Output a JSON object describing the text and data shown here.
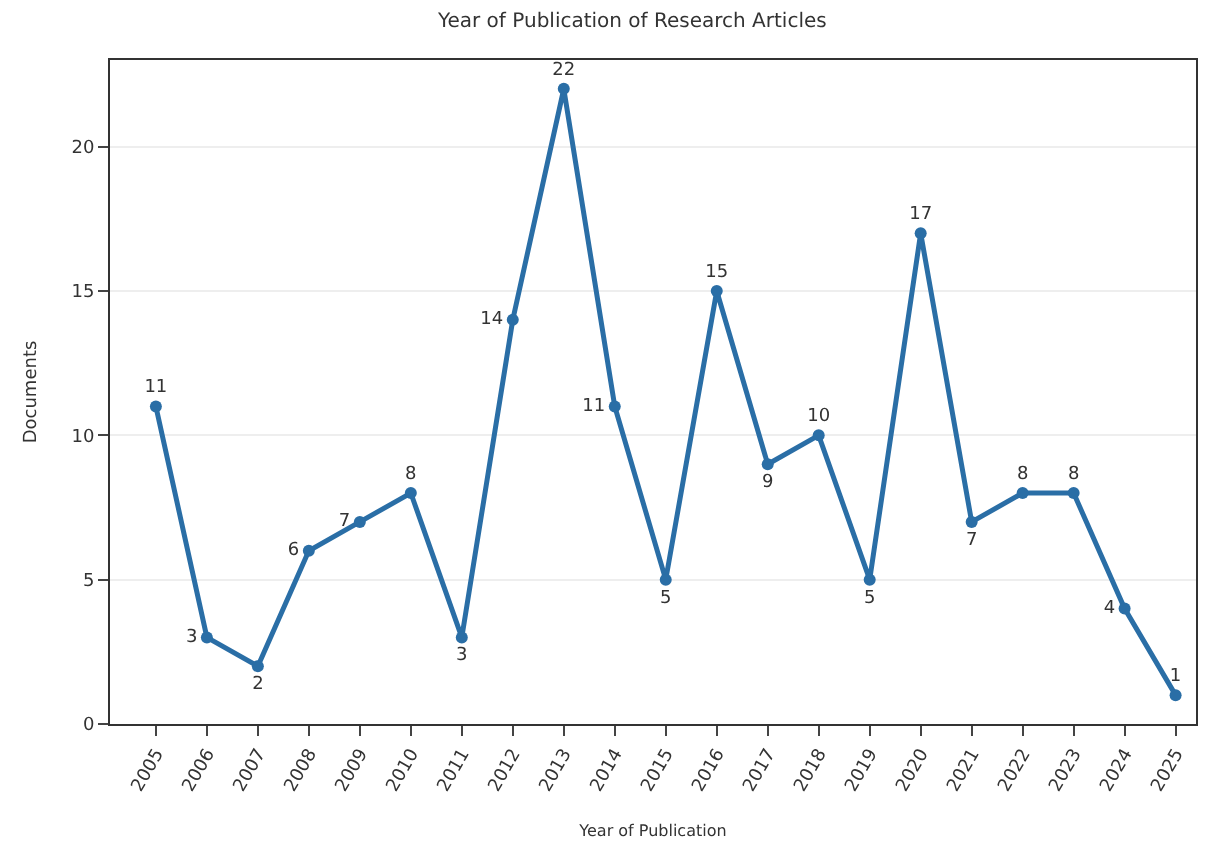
{
  "chart_data": {
    "type": "line",
    "title": "Year of Publication of Research Articles",
    "xlabel": "Year of Publication",
    "ylabel": "Documents",
    "categories": [
      "2005",
      "2006",
      "2007",
      "2008",
      "2009",
      "2010",
      "2011",
      "2012",
      "2013",
      "2014",
      "2015",
      "2016",
      "2017",
      "2018",
      "2019",
      "2020",
      "2021",
      "2022",
      "2023",
      "2024",
      "2025"
    ],
    "series": [
      {
        "color": "#2a6ea6",
        "values": [
          11,
          3,
          2,
          6,
          7,
          8,
          3,
          14,
          22,
          11,
          5,
          15,
          9,
          10,
          5,
          17,
          7,
          8,
          8,
          4,
          1
        ]
      }
    ],
    "ylim": [
      0,
      23
    ],
    "yticks": [
      0,
      5,
      10,
      15,
      20
    ],
    "grid": "y",
    "marker": "circle",
    "line_style": "solid",
    "data_labels": true
  }
}
